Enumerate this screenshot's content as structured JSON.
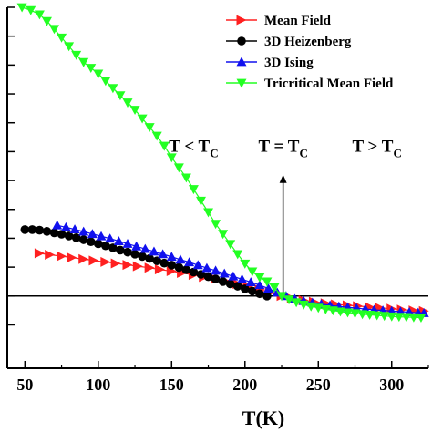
{
  "chart_data": {
    "type": "scatter",
    "xlabel": "T(K)",
    "ylabel": "",
    "xlim": [
      38,
      325
    ],
    "ylim": [
      -0.25,
      1.0
    ],
    "x_ticks": [
      50,
      100,
      150,
      200,
      250,
      300
    ],
    "y_ticks": [
      -0.1,
      0.0,
      0.1,
      0.2,
      0.3,
      0.4,
      0.5,
      0.6,
      0.7,
      0.8,
      0.9,
      1.0
    ],
    "show_y_tick_labels": false,
    "zero_line": 0,
    "tc_x": 226,
    "tc_arrow": [
      0.0,
      0.42
    ],
    "legend_position": "top-right",
    "series": [
      {
        "name": "Mean Field",
        "color": "#ff2020",
        "marker": "triangle-right",
        "x": [
          60,
          67,
          75,
          82,
          90,
          97,
          105,
          112,
          120,
          127,
          135,
          142,
          150,
          157,
          165,
          172,
          180,
          187,
          195,
          202,
          210,
          217,
          225,
          232,
          240,
          247,
          255,
          262,
          270,
          277,
          285,
          292,
          300,
          307,
          315,
          322
        ],
        "y": [
          0.148,
          0.143,
          0.138,
          0.133,
          0.128,
          0.123,
          0.118,
          0.113,
          0.108,
          0.103,
          0.098,
          0.092,
          0.086,
          0.08,
          0.073,
          0.066,
          0.059,
          0.051,
          0.042,
          0.033,
          0.023,
          0.012,
          0.0,
          -0.008,
          -0.015,
          -0.02,
          -0.025,
          -0.029,
          -0.032,
          -0.035,
          -0.038,
          -0.041,
          -0.044,
          -0.047,
          -0.05,
          -0.052
        ]
      },
      {
        "name": "3D Heizenberg",
        "color": "#000000",
        "marker": "circle",
        "x": [
          50,
          55,
          60,
          65,
          70,
          75,
          80,
          85,
          90,
          95,
          100,
          105,
          110,
          115,
          120,
          125,
          130,
          135,
          140,
          145,
          150,
          155,
          160,
          165,
          170,
          175,
          180,
          185,
          190,
          195,
          200,
          205,
          210,
          215
        ],
        "y": [
          0.23,
          0.23,
          0.228,
          0.224,
          0.219,
          0.214,
          0.208,
          0.202,
          0.195,
          0.188,
          0.181,
          0.174,
          0.167,
          0.159,
          0.152,
          0.145,
          0.137,
          0.13,
          0.122,
          0.114,
          0.107,
          0.099,
          0.091,
          0.083,
          0.075,
          0.067,
          0.059,
          0.05,
          0.042,
          0.034,
          0.025,
          0.017,
          0.008,
          0.0
        ]
      },
      {
        "name": "3D Ising",
        "color": "#1010ee",
        "marker": "triangle-up",
        "x": [
          72,
          78,
          84,
          90,
          96,
          102,
          108,
          114,
          120,
          126,
          132,
          138,
          144,
          150,
          156,
          162,
          168,
          174,
          180,
          186,
          192,
          198,
          204,
          210,
          216,
          222,
          228,
          234,
          240,
          246,
          252,
          258,
          264,
          270,
          276,
          282,
          288,
          294,
          300,
          306,
          312,
          318,
          322
        ],
        "y": [
          0.245,
          0.238,
          0.231,
          0.223,
          0.215,
          0.207,
          0.199,
          0.19,
          0.181,
          0.172,
          0.163,
          0.154,
          0.145,
          0.136,
          0.126,
          0.117,
          0.107,
          0.097,
          0.088,
          0.078,
          0.068,
          0.058,
          0.048,
          0.038,
          0.026,
          0.012,
          0.0,
          -0.01,
          -0.017,
          -0.023,
          -0.028,
          -0.032,
          -0.036,
          -0.039,
          -0.042,
          -0.045,
          -0.048,
          -0.05,
          -0.052,
          -0.054,
          -0.056,
          -0.058,
          -0.059
        ]
      },
      {
        "name": "Tricritical Mean Field",
        "color": "#22ff22",
        "marker": "triangle-down",
        "x": [
          48,
          54,
          60,
          65,
          70,
          75,
          80,
          85,
          90,
          95,
          100,
          105,
          110,
          115,
          120,
          125,
          130,
          135,
          140,
          145,
          150,
          155,
          160,
          165,
          170,
          175,
          180,
          185,
          190,
          195,
          200,
          205,
          210,
          215,
          220,
          225,
          230,
          235,
          240,
          245,
          250,
          255,
          260,
          265,
          270,
          275,
          280,
          285,
          290,
          295,
          300,
          305,
          310,
          315,
          320
        ],
        "y": [
          1.0,
          0.99,
          0.975,
          0.952,
          0.925,
          0.895,
          0.865,
          0.835,
          0.81,
          0.79,
          0.77,
          0.745,
          0.72,
          0.695,
          0.67,
          0.645,
          0.615,
          0.585,
          0.555,
          0.52,
          0.48,
          0.445,
          0.41,
          0.37,
          0.33,
          0.29,
          0.25,
          0.215,
          0.18,
          0.145,
          0.112,
          0.085,
          0.065,
          0.05,
          0.03,
          0.0,
          -0.012,
          -0.022,
          -0.03,
          -0.036,
          -0.041,
          -0.046,
          -0.05,
          -0.054,
          -0.057,
          -0.06,
          -0.063,
          -0.065,
          -0.067,
          -0.069,
          -0.071,
          -0.072,
          -0.073,
          -0.074,
          -0.075
        ]
      }
    ],
    "annotations": [
      {
        "main": "T < T",
        "sub": "C",
        "x": 165,
        "y": 0.5
      },
      {
        "main": "T = T",
        "sub": "C",
        "x": 226,
        "y": 0.5
      },
      {
        "main": "T > T",
        "sub": "C",
        "x": 290,
        "y": 0.5
      }
    ]
  }
}
